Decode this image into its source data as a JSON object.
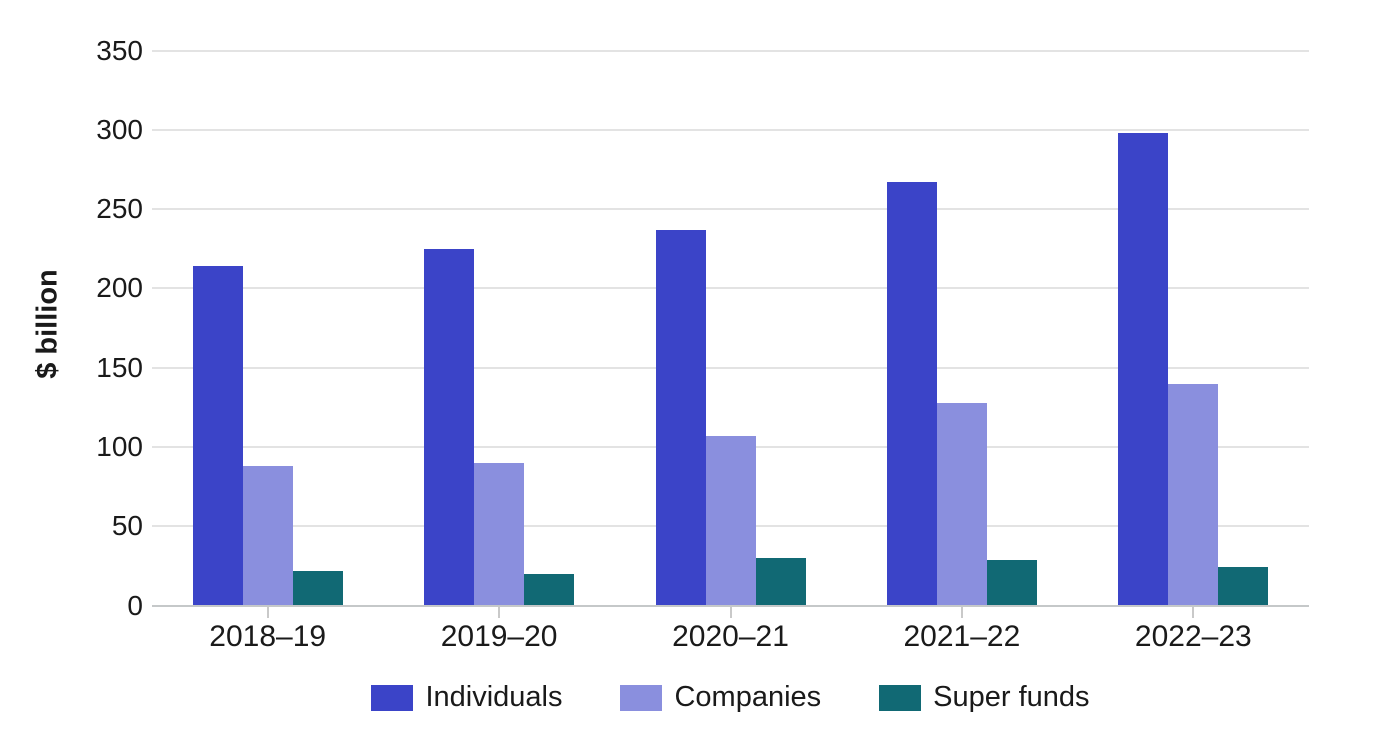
{
  "chart_data": {
    "type": "bar",
    "title": "",
    "xlabel": "",
    "ylabel": "$ billion",
    "categories": [
      "2018–19",
      "2019–20",
      "2020–21",
      "2021–22",
      "2022–23"
    ],
    "series": [
      {
        "name": "Individuals",
        "color": "#3b44c8",
        "values": [
          214,
          225,
          237,
          267,
          298
        ]
      },
      {
        "name": "Companies",
        "color": "#8a8fde",
        "values": [
          88,
          90,
          107,
          128,
          140
        ]
      },
      {
        "name": "Super funds",
        "color": "#116974",
        "values": [
          22,
          20,
          30,
          29,
          24
        ]
      }
    ],
    "ylim": [
      0,
      350
    ],
    "yticks": [
      0,
      50,
      100,
      150,
      200,
      250,
      300,
      350
    ],
    "grid": "horizontal",
    "legend_position": "bottom",
    "background_color": "#ffffff",
    "gridline_color": "#e3e3e3",
    "axis_line_color": "#c5c8c9",
    "text_color": "#1a1a1a"
  }
}
